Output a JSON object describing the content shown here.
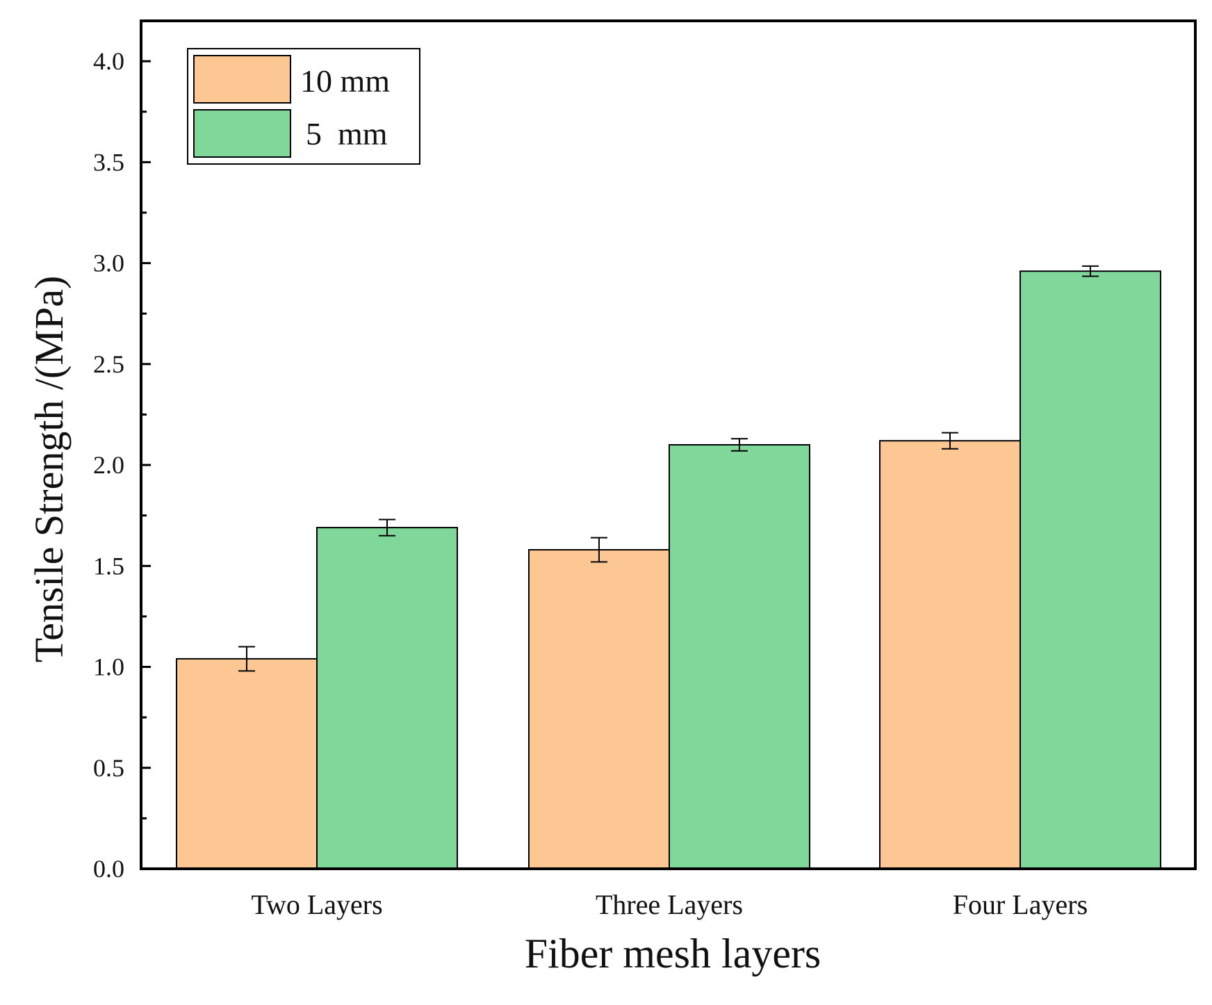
{
  "chart_data": {
    "type": "bar",
    "title": "",
    "xlabel": "Fiber mesh layers",
    "ylabel": "Tensile Strength /(MPa)",
    "ylim": [
      0,
      4.2
    ],
    "yticks": [
      "0.0",
      "0.5",
      "1.0",
      "1.5",
      "2.0",
      "2.5",
      "3.0",
      "3.5",
      "4.0"
    ],
    "categories": [
      "Two Layers",
      "Three Layers",
      "Four Layers"
    ],
    "series": [
      {
        "name": "10 mm",
        "color": "#FDC794",
        "values": [
          1.04,
          1.58,
          2.12
        ],
        "errors": [
          0.06,
          0.06,
          0.04
        ]
      },
      {
        "name": "5  mm",
        "color": "#7FD899",
        "values": [
          1.69,
          2.1,
          2.96
        ],
        "errors": [
          0.04,
          0.03,
          0.025
        ]
      }
    ],
    "grid": false,
    "legend_position": "top-left"
  }
}
